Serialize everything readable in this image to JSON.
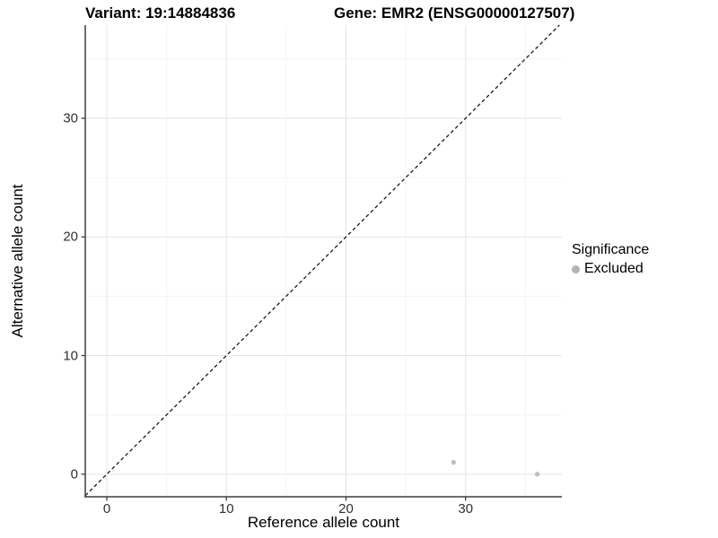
{
  "titles": {
    "variant": "Variant: 19:14884836",
    "gene": "Gene: EMR2 (ENSG00000127507)"
  },
  "chart_data": {
    "type": "scatter",
    "xlabel": "Reference allele count",
    "ylabel": "Alternative allele count",
    "xlim": [
      -1.8,
      38.05
    ],
    "ylim": [
      -1.9,
      37.85
    ],
    "x_major_ticks": [
      0,
      10,
      20,
      30
    ],
    "y_major_ticks": [
      0,
      10,
      20,
      30
    ],
    "x_minor_ticks": [
      5,
      15,
      25,
      35
    ],
    "y_minor_ticks": [
      5,
      15,
      25,
      35
    ],
    "grid": true,
    "series": [
      {
        "name": "Excluded",
        "color": "#bebebe",
        "points": [
          {
            "x": 29,
            "y": 1
          },
          {
            "x": 36,
            "y": 0
          }
        ]
      }
    ],
    "reference_line": {
      "type": "identity",
      "style": "dashed",
      "color": "#1a1a1a"
    },
    "legend": {
      "title": "Significance",
      "position": "right",
      "entries": [
        {
          "label": "Excluded",
          "color": "#b3b3b3"
        }
      ]
    },
    "colors": {
      "grid_major": "#e4e4e4",
      "grid_minor": "#f3f3f3",
      "axis_line": "#3f3f3f",
      "tick_text": "#303030"
    }
  }
}
